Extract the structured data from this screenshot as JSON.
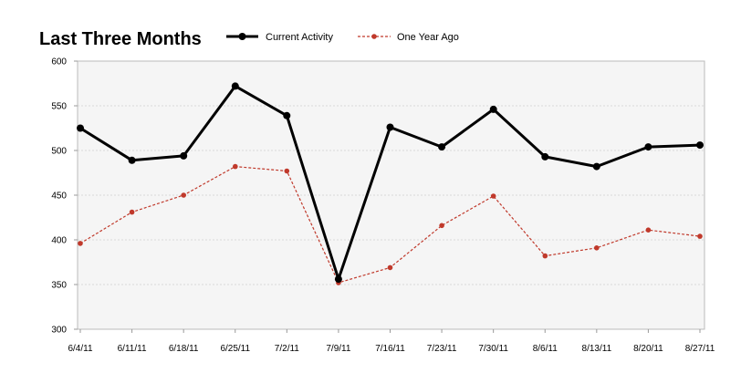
{
  "chart_data": {
    "type": "line",
    "title": "Last Three Months",
    "categories": [
      "6/4/11",
      "6/11/11",
      "6/18/11",
      "6/25/11",
      "7/2/11",
      "7/9/11",
      "7/16/11",
      "7/23/11",
      "7/30/11",
      "8/6/11",
      "8/13/11",
      "8/20/11",
      "8/27/11"
    ],
    "y_ticks": [
      "300",
      "350",
      "400",
      "450",
      "500",
      "550",
      "600"
    ],
    "ylim": [
      300,
      600
    ],
    "grid": true,
    "legend_position": "top",
    "series": [
      {
        "name": "Current Activity",
        "color": "#000000",
        "style": "solid",
        "values": [
          525,
          489,
          494,
          572,
          539,
          356,
          526,
          504,
          546,
          493,
          482,
          504,
          506
        ]
      },
      {
        "name": "One Year Ago",
        "color": "#c0392b",
        "style": "dashed",
        "values": [
          396,
          431,
          450,
          482,
          477,
          352,
          369,
          416,
          449,
          382,
          391,
          411,
          404
        ]
      }
    ]
  }
}
